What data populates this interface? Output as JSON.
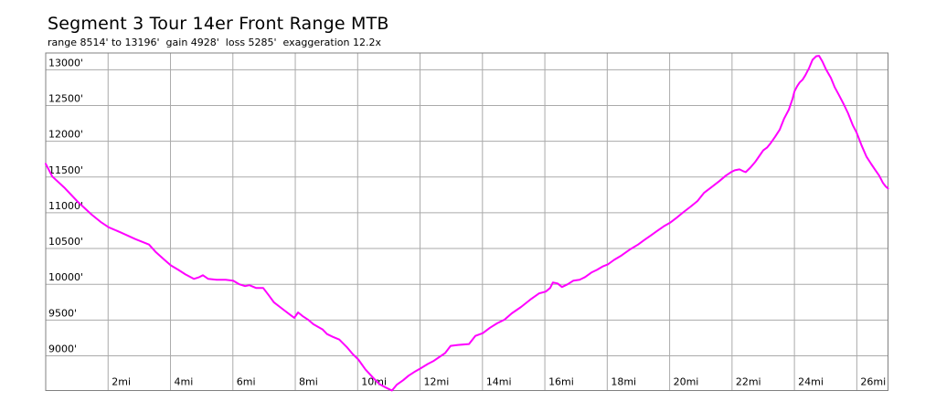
{
  "title": "Segment 3 Tour 14er Front Range MTB",
  "subtitle": "range 8514' to 13196'  gain 4928'  loss 5285'  exaggeration 12.2x",
  "stats": {
    "range_min": "8514'",
    "range_max": "13196'",
    "gain": "4928'",
    "loss": "5285'",
    "exaggeration": "12.2x"
  },
  "colors": {
    "line": "#ff00ff",
    "grid": "#aaaaaa",
    "frame": "#808080",
    "text": "#000000",
    "background": "#ffffff"
  },
  "chart_data": {
    "type": "line",
    "title": "Segment 3 Tour 14er Front Range MTB",
    "xlabel": "",
    "ylabel": "",
    "legend": "none",
    "grid": true,
    "line_color": "#ff00ff",
    "xlim": [
      0,
      27
    ],
    "ylim": [
      8514,
      13235
    ],
    "xticks": [
      {
        "value": 2,
        "label": "2mi"
      },
      {
        "value": 4,
        "label": "4mi"
      },
      {
        "value": 6,
        "label": "6mi"
      },
      {
        "value": 8,
        "label": "8mi"
      },
      {
        "value": 10,
        "label": "10mi"
      },
      {
        "value": 12,
        "label": "12mi"
      },
      {
        "value": 14,
        "label": "14mi"
      },
      {
        "value": 16,
        "label": "16mi"
      },
      {
        "value": 18,
        "label": "18mi"
      },
      {
        "value": 20,
        "label": "20mi"
      },
      {
        "value": 22,
        "label": "22mi"
      },
      {
        "value": 24,
        "label": "24mi"
      },
      {
        "value": 26,
        "label": "26mi"
      }
    ],
    "yticks": [
      {
        "value": 9000,
        "label": "9000'"
      },
      {
        "value": 9500,
        "label": "9500'"
      },
      {
        "value": 10000,
        "label": "10000'"
      },
      {
        "value": 10500,
        "label": "10500'"
      },
      {
        "value": 11000,
        "label": "11000'"
      },
      {
        "value": 11500,
        "label": "11500'"
      },
      {
        "value": 12000,
        "label": "12000'"
      },
      {
        "value": 12500,
        "label": "12500'"
      },
      {
        "value": 13000,
        "label": "13000'"
      }
    ],
    "points": [
      [
        0.0,
        11685
      ],
      [
        0.21,
        11507
      ],
      [
        0.59,
        11355
      ],
      [
        1.03,
        11152
      ],
      [
        1.47,
        10975
      ],
      [
        1.76,
        10873
      ],
      [
        2.02,
        10797
      ],
      [
        2.43,
        10721
      ],
      [
        2.87,
        10633
      ],
      [
        3.31,
        10556
      ],
      [
        3.52,
        10455
      ],
      [
        3.81,
        10341
      ],
      [
        4.01,
        10265
      ],
      [
        4.25,
        10202
      ],
      [
        4.48,
        10138
      ],
      [
        4.75,
        10075
      ],
      [
        4.92,
        10100
      ],
      [
        5.04,
        10126
      ],
      [
        5.21,
        10075
      ],
      [
        5.48,
        10063
      ],
      [
        5.77,
        10063
      ],
      [
        6.01,
        10050
      ],
      [
        6.21,
        10000
      ],
      [
        6.39,
        9974
      ],
      [
        6.53,
        9987
      ],
      [
        6.74,
        9949
      ],
      [
        6.97,
        9949
      ],
      [
        7.15,
        9847
      ],
      [
        7.32,
        9746
      ],
      [
        7.62,
        9645
      ],
      [
        7.85,
        9569
      ],
      [
        7.97,
        9531
      ],
      [
        8.09,
        9607
      ],
      [
        8.23,
        9556
      ],
      [
        8.41,
        9506
      ],
      [
        8.58,
        9442
      ],
      [
        8.88,
        9366
      ],
      [
        9.02,
        9303
      ],
      [
        9.2,
        9265
      ],
      [
        9.41,
        9227
      ],
      [
        9.67,
        9113
      ],
      [
        9.84,
        9025
      ],
      [
        10.02,
        8949
      ],
      [
        10.25,
        8809
      ],
      [
        10.49,
        8695
      ],
      [
        10.69,
        8607
      ],
      [
        10.9,
        8556
      ],
      [
        11.1,
        8514
      ],
      [
        11.25,
        8594
      ],
      [
        11.46,
        8658
      ],
      [
        11.63,
        8721
      ],
      [
        11.81,
        8772
      ],
      [
        12.01,
        8822
      ],
      [
        12.25,
        8886
      ],
      [
        12.42,
        8924
      ],
      [
        12.63,
        8987
      ],
      [
        12.8,
        9037
      ],
      [
        12.98,
        9139
      ],
      [
        13.21,
        9151
      ],
      [
        13.57,
        9164
      ],
      [
        13.77,
        9278
      ],
      [
        14.01,
        9316
      ],
      [
        14.24,
        9392
      ],
      [
        14.47,
        9455
      ],
      [
        14.71,
        9506
      ],
      [
        14.94,
        9594
      ],
      [
        15.24,
        9683
      ],
      [
        15.53,
        9784
      ],
      [
        15.82,
        9873
      ],
      [
        16.03,
        9898
      ],
      [
        16.17,
        9949
      ],
      [
        16.26,
        10025
      ],
      [
        16.41,
        10012
      ],
      [
        16.55,
        9962
      ],
      [
        16.73,
        10000
      ],
      [
        16.91,
        10050
      ],
      [
        17.11,
        10063
      ],
      [
        17.29,
        10101
      ],
      [
        17.49,
        10164
      ],
      [
        17.67,
        10202
      ],
      [
        17.87,
        10253
      ],
      [
        18.02,
        10278
      ],
      [
        18.22,
        10341
      ],
      [
        18.46,
        10404
      ],
      [
        18.75,
        10493
      ],
      [
        18.99,
        10556
      ],
      [
        19.19,
        10620
      ],
      [
        19.4,
        10683
      ],
      [
        19.6,
        10746
      ],
      [
        19.81,
        10810
      ],
      [
        20.01,
        10860
      ],
      [
        20.24,
        10936
      ],
      [
        20.45,
        11012
      ],
      [
        20.68,
        11088
      ],
      [
        20.89,
        11164
      ],
      [
        21.1,
        11278
      ],
      [
        21.33,
        11354
      ],
      [
        21.59,
        11443
      ],
      [
        21.8,
        11519
      ],
      [
        21.97,
        11569
      ],
      [
        22.09,
        11595
      ],
      [
        22.24,
        11607
      ],
      [
        22.36,
        11582
      ],
      [
        22.44,
        11569
      ],
      [
        22.59,
        11633
      ],
      [
        22.74,
        11709
      ],
      [
        22.88,
        11797
      ],
      [
        23.0,
        11873
      ],
      [
        23.12,
        11911
      ],
      [
        23.24,
        11975
      ],
      [
        23.38,
        12063
      ],
      [
        23.53,
        12164
      ],
      [
        23.67,
        12316
      ],
      [
        23.82,
        12443
      ],
      [
        23.94,
        12595
      ],
      [
        24.0,
        12696
      ],
      [
        24.09,
        12772
      ],
      [
        24.17,
        12823
      ],
      [
        24.26,
        12861
      ],
      [
        24.35,
        12924
      ],
      [
        24.47,
        13025
      ],
      [
        24.58,
        13139
      ],
      [
        24.7,
        13190
      ],
      [
        24.79,
        13196
      ],
      [
        24.9,
        13114
      ],
      [
        25.02,
        13000
      ],
      [
        25.17,
        12886
      ],
      [
        25.29,
        12759
      ],
      [
        25.43,
        12645
      ],
      [
        25.58,
        12519
      ],
      [
        25.72,
        12392
      ],
      [
        25.87,
        12227
      ],
      [
        25.99,
        12126
      ],
      [
        26.16,
        11936
      ],
      [
        26.31,
        11784
      ],
      [
        26.46,
        11683
      ],
      [
        26.6,
        11594
      ],
      [
        26.72,
        11519
      ],
      [
        26.84,
        11417
      ],
      [
        26.93,
        11367
      ],
      [
        27.0,
        11340
      ]
    ]
  }
}
